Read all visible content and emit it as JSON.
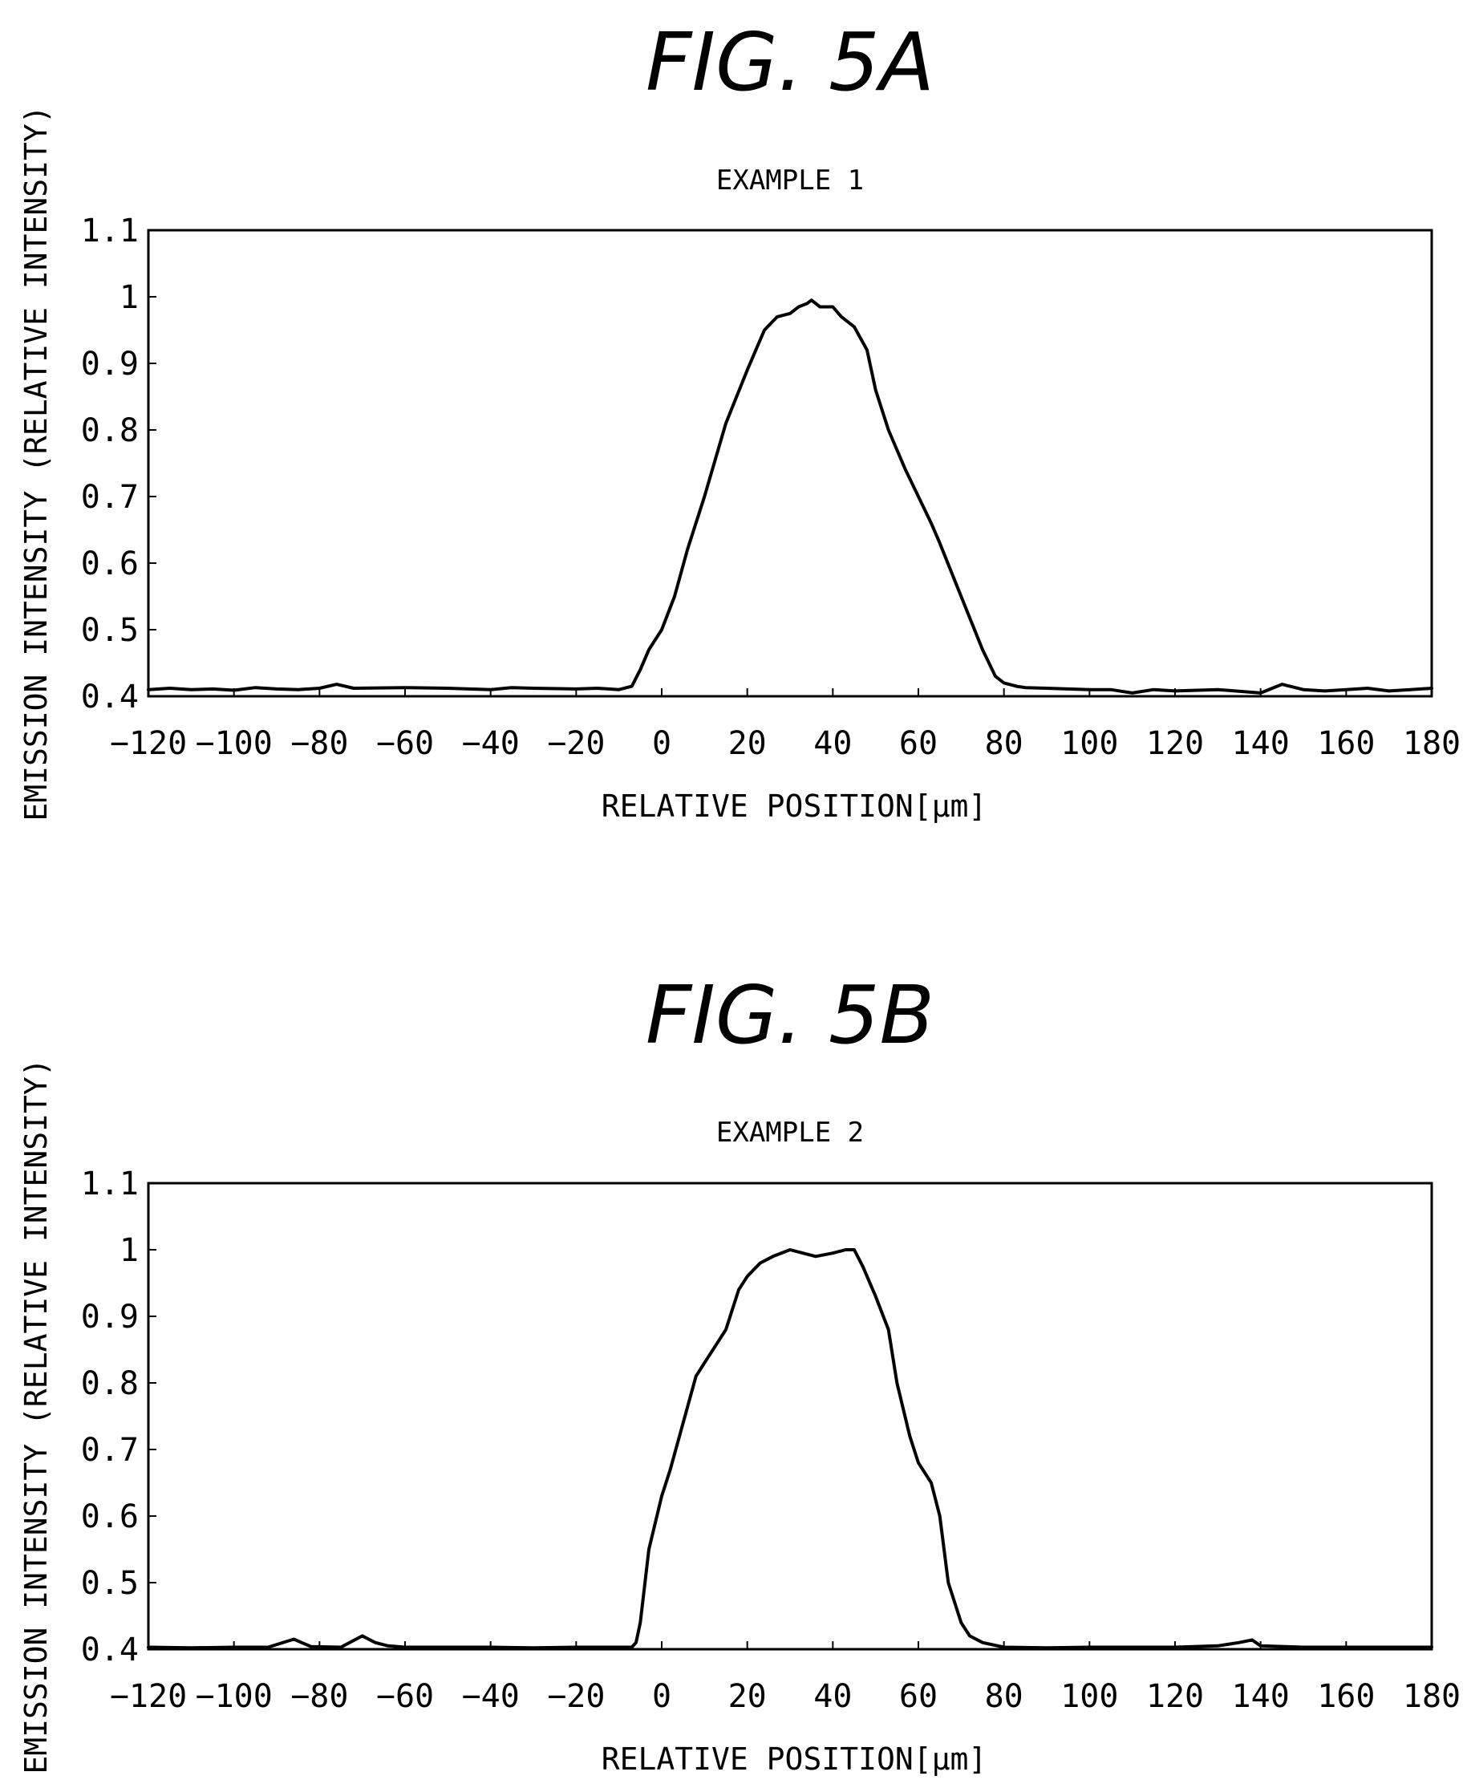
{
  "figures": [
    {
      "label": "FIG. 5A"
    },
    {
      "label": "FIG. 5B"
    }
  ],
  "chart_data": [
    {
      "type": "line",
      "title": "EXAMPLE 1",
      "xlabel": "RELATIVE POSITION[μm]",
      "ylabel": "EMISSION INTENSITY (RELATIVE INTENSITY)",
      "xlim": [
        -120,
        180
      ],
      "ylim": [
        0.4,
        1.1
      ],
      "xticks": [
        "-120",
        "-100",
        "-80",
        "-60",
        "-40",
        "-20",
        "0",
        "20",
        "40",
        "60",
        "80",
        "100",
        "120",
        "140",
        "160",
        "180"
      ],
      "yticks": [
        "0.4",
        "0.5",
        "0.6",
        "0.7",
        "0.8",
        "0.9",
        "1",
        "1.1"
      ],
      "grid": false,
      "series": [
        {
          "x": [
            -120,
            -115,
            -110,
            -105,
            -100,
            -95,
            -90,
            -85,
            -80,
            -76,
            -72,
            -60,
            -50,
            -40,
            -35,
            -30,
            -20,
            -15,
            -10,
            -7,
            -5,
            -3,
            0,
            3,
            6,
            10,
            15,
            20,
            24,
            27,
            30,
            32,
            34,
            35,
            37,
            40,
            42,
            45,
            48,
            50,
            53,
            55,
            57,
            60,
            63,
            65,
            70,
            75,
            78,
            80,
            83,
            85,
            90,
            100,
            105,
            110,
            115,
            120,
            130,
            140,
            145,
            150,
            155,
            160,
            165,
            170,
            175,
            180
          ],
          "y": [
            0.41,
            0.412,
            0.41,
            0.411,
            0.409,
            0.413,
            0.411,
            0.41,
            0.412,
            0.418,
            0.412,
            0.413,
            0.412,
            0.41,
            0.413,
            0.412,
            0.411,
            0.412,
            0.41,
            0.415,
            0.44,
            0.47,
            0.5,
            0.55,
            0.62,
            0.7,
            0.81,
            0.89,
            0.95,
            0.97,
            0.975,
            0.985,
            0.99,
            0.995,
            0.985,
            0.985,
            0.97,
            0.955,
            0.92,
            0.86,
            0.8,
            0.77,
            0.74,
            0.7,
            0.66,
            0.63,
            0.55,
            0.47,
            0.43,
            0.42,
            0.415,
            0.413,
            0.412,
            0.41,
            0.41,
            0.405,
            0.41,
            0.408,
            0.41,
            0.405,
            0.418,
            0.41,
            0.408,
            0.41,
            0.412,
            0.408,
            0.41,
            0.412
          ]
        }
      ]
    },
    {
      "type": "line",
      "title": "EXAMPLE 2",
      "xlabel": "RELATIVE POSITION[μm]",
      "ylabel": "EMISSION INTENSITY (RELATIVE INTENSITY)",
      "xlim": [
        -120,
        180
      ],
      "ylim": [
        0.4,
        1.1
      ],
      "xticks": [
        "-120",
        "-100",
        "-80",
        "-60",
        "-40",
        "-20",
        "0",
        "20",
        "40",
        "60",
        "80",
        "100",
        "120",
        "140",
        "160",
        "180"
      ],
      "yticks": [
        "0.4",
        "0.5",
        "0.6",
        "0.7",
        "0.8",
        "0.9",
        "1",
        "1.1"
      ],
      "grid": false,
      "series": [
        {
          "x": [
            -120,
            -110,
            -100,
            -92,
            -86,
            -82,
            -75,
            -70,
            -67,
            -64,
            -60,
            -50,
            -40,
            -30,
            -20,
            -10,
            -7,
            -6,
            -5,
            -3,
            0,
            2,
            5,
            8,
            10,
            15,
            18,
            20,
            23,
            26,
            30,
            33,
            36,
            40,
            43,
            45,
            47,
            50,
            53,
            55,
            58,
            60,
            63,
            65,
            67,
            70,
            72,
            75,
            80,
            90,
            100,
            110,
            120,
            130,
            135,
            138,
            140,
            150,
            160,
            170,
            180
          ],
          "y": [
            0.403,
            0.402,
            0.403,
            0.403,
            0.415,
            0.404,
            0.403,
            0.42,
            0.41,
            0.405,
            0.403,
            0.403,
            0.403,
            0.402,
            0.403,
            0.403,
            0.403,
            0.41,
            0.44,
            0.55,
            0.63,
            0.67,
            0.74,
            0.81,
            0.83,
            0.88,
            0.94,
            0.96,
            0.98,
            0.99,
            1.0,
            0.995,
            0.99,
            0.995,
            1.0,
            1.0,
            0.975,
            0.93,
            0.88,
            0.8,
            0.72,
            0.68,
            0.65,
            0.6,
            0.5,
            0.44,
            0.42,
            0.41,
            0.403,
            0.402,
            0.403,
            0.403,
            0.403,
            0.405,
            0.41,
            0.414,
            0.405,
            0.403,
            0.403,
            0.403,
            0.403
          ]
        }
      ]
    }
  ]
}
